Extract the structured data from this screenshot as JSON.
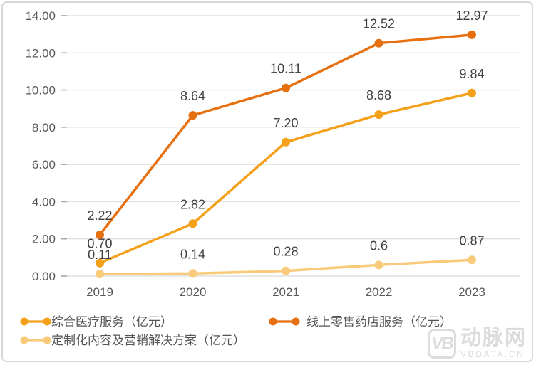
{
  "chart_data": {
    "type": "line",
    "categories": [
      "2019",
      "2020",
      "2021",
      "2022",
      "2023"
    ],
    "series": [
      {
        "name": "综合医疗服务（亿元）",
        "color": "#F4A019",
        "values": [
          0.7,
          2.82,
          7.2,
          8.68,
          9.84
        ],
        "labels": [
          "0.70",
          "2.82",
          "7.20",
          "8.68",
          "9.84"
        ]
      },
      {
        "name": "线上零售药店服务（亿元）",
        "color": "#E66F0F",
        "values": [
          2.22,
          8.64,
          10.11,
          12.52,
          12.97
        ],
        "labels": [
          "2.22",
          "8.64",
          "10.11",
          "12.52",
          "12.97"
        ]
      },
      {
        "name": "定制化内容及营销解决方案（亿元）",
        "color": "#F8CA79",
        "values": [
          0.11,
          0.14,
          0.28,
          0.6,
          0.87
        ],
        "labels": [
          "0.11",
          "0.14",
          "0.28",
          "0.6",
          "0.87"
        ]
      }
    ],
    "title": "",
    "xlabel": "",
    "ylabel": "",
    "ylim": [
      0,
      14
    ],
    "ytick_step": 2,
    "yticks": [
      "0.00",
      "2.00",
      "4.00",
      "6.00",
      "8.00",
      "10.00",
      "12.00",
      "14.00"
    ],
    "grid": true,
    "legend_position": "bottom"
  },
  "theme": {
    "grid_color": "#E1E1E1",
    "tick_color": "#A9A9A9",
    "axis_text_color": "#595959",
    "data_label_color": "#3F3F3F",
    "legend_text_color": "#555555",
    "panel_border_color": "#D7D7D7",
    "watermark_color": "#DCDCDC"
  },
  "watermark": {
    "logo_text": "VB",
    "brand_cn": "动脉网",
    "brand_en": "VBDATA.CN"
  }
}
